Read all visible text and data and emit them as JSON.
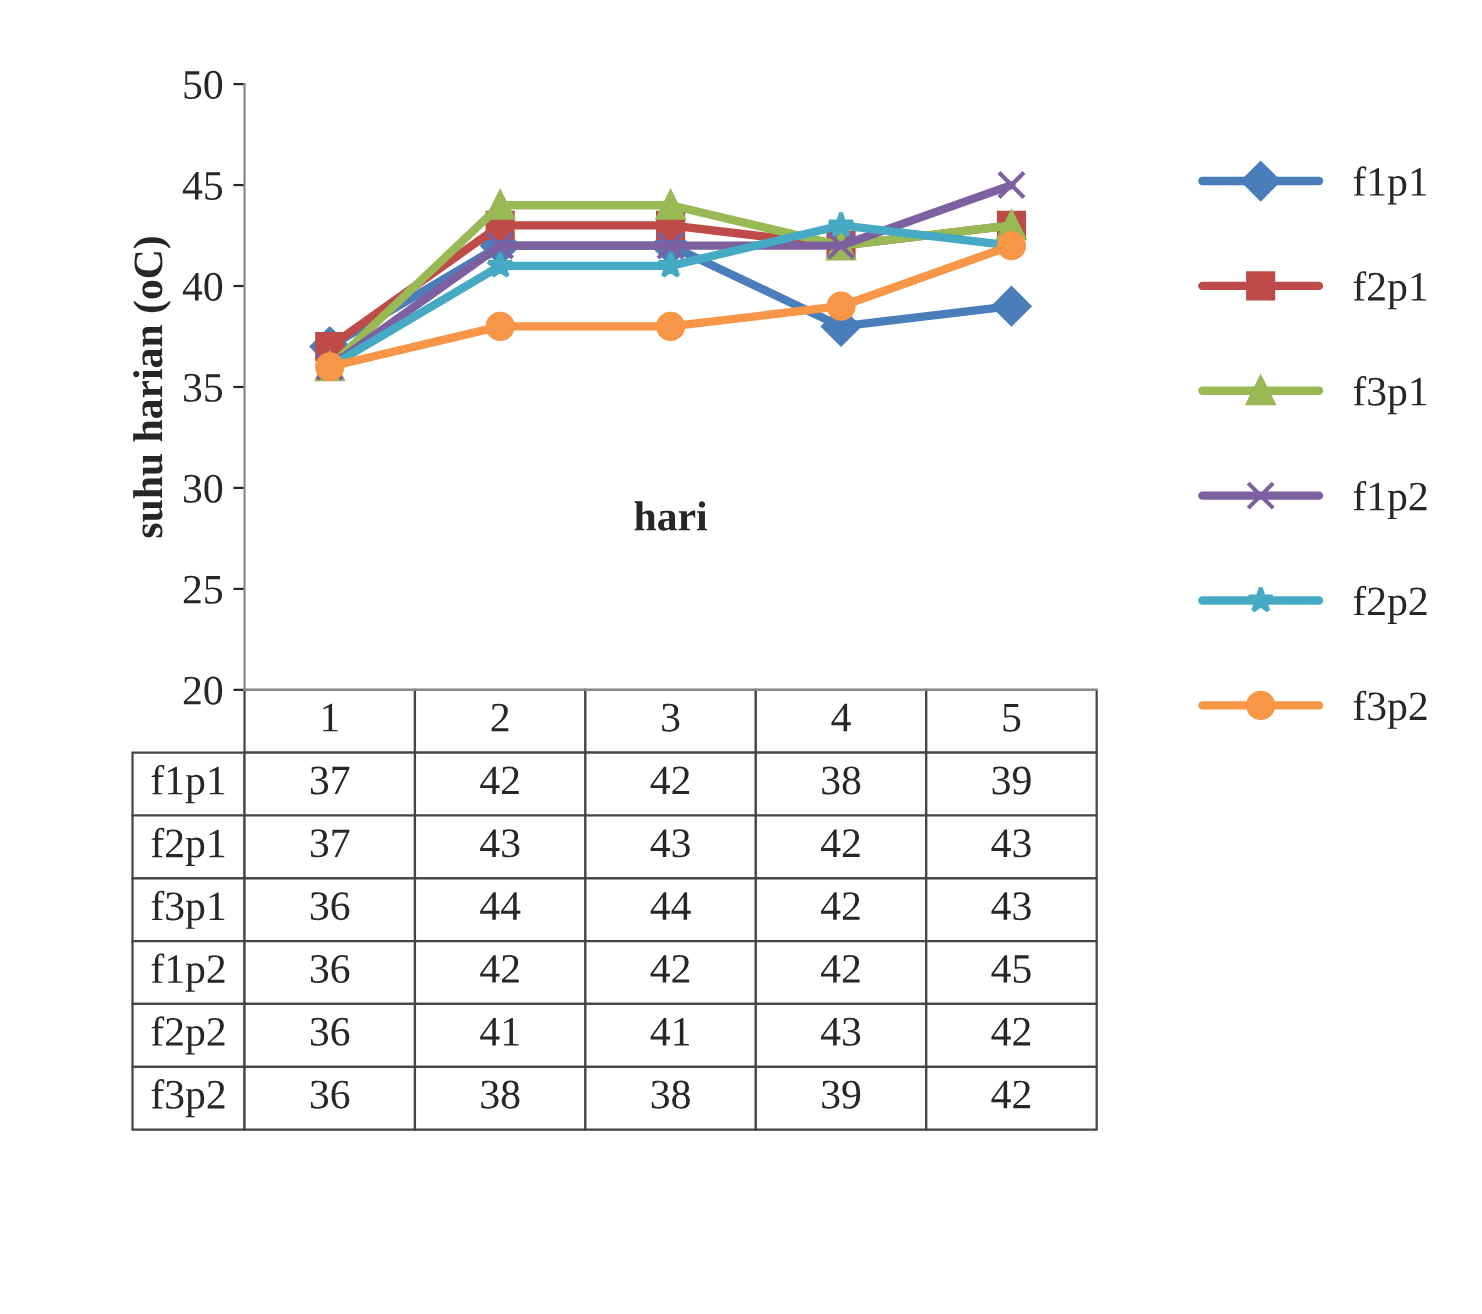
{
  "chart_data": {
    "type": "line",
    "ylabel": "suhu harian (oC)",
    "xlabel": "hari",
    "categories": [
      "1",
      "2",
      "3",
      "4",
      "5"
    ],
    "series": [
      {
        "name": "f1p1",
        "color": "#4a7ebb",
        "marker": "diamond",
        "values": [
          37,
          42,
          42,
          38,
          39
        ]
      },
      {
        "name": "f2p1",
        "color": "#be4b48",
        "marker": "square",
        "values": [
          37,
          43,
          43,
          42,
          43
        ]
      },
      {
        "name": "f3p1",
        "color": "#98b954",
        "marker": "triangle",
        "values": [
          36,
          44,
          44,
          42,
          43
        ]
      },
      {
        "name": "f1p2",
        "color": "#7d60a0",
        "marker": "cross",
        "values": [
          36,
          42,
          42,
          42,
          45
        ]
      },
      {
        "name": "f2p2",
        "color": "#46aac5",
        "marker": "star",
        "values": [
          36,
          41,
          41,
          43,
          42
        ]
      },
      {
        "name": "f3p2",
        "color": "#f79646",
        "marker": "circle",
        "values": [
          36,
          38,
          38,
          39,
          42
        ]
      }
    ],
    "ylim": [
      20,
      50
    ],
    "yticks": [
      20,
      25,
      30,
      35,
      40,
      45,
      50
    ],
    "grid": false,
    "legend": "right",
    "data_labels": true
  }
}
